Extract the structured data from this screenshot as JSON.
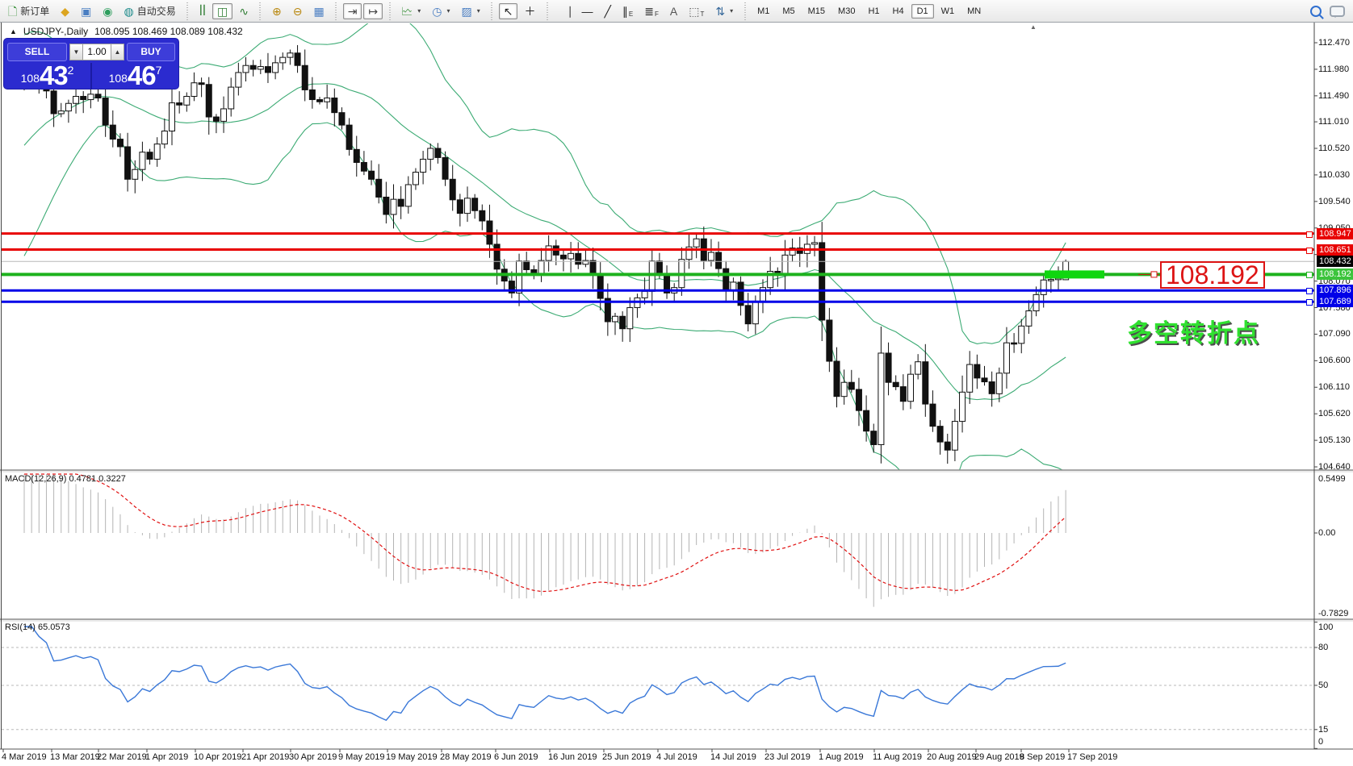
{
  "toolbar": {
    "groups": [
      {
        "items": [
          {
            "name": "new-order",
            "glyph": "🗋",
            "glyph_color": "#2e8b2e",
            "label": "新订单"
          },
          {
            "name": "metaeditor",
            "glyph": "◆",
            "glyph_color": "#dca520"
          },
          {
            "name": "terminal",
            "glyph": "▣",
            "glyph_color": "#4a7ec2"
          },
          {
            "name": "signals",
            "glyph": "◉",
            "glyph_color": "#2e9e5e"
          },
          {
            "name": "auto-trading",
            "glyph": "◍",
            "glyph_color": "#1c8a8a",
            "label": "自动交易"
          }
        ]
      },
      {
        "items": [
          {
            "name": "bar-chart",
            "glyph": "ꟾꟾ",
            "glyph_color": "#2e7d32"
          },
          {
            "name": "candlestick-chart",
            "glyph": "◫",
            "glyph_color": "#2e7d32",
            "pressed": true
          },
          {
            "name": "line-chart",
            "glyph": "∿",
            "glyph_color": "#2e7d32"
          }
        ]
      },
      {
        "items": [
          {
            "name": "zoom-in",
            "glyph": "⊕",
            "glyph_color": "#b8860b"
          },
          {
            "name": "zoom-out",
            "glyph": "⊖",
            "glyph_color": "#b8860b"
          },
          {
            "name": "tile-windows",
            "glyph": "▦",
            "glyph_color": "#4a7ec2"
          }
        ]
      },
      {
        "items": [
          {
            "name": "chart-shift",
            "glyph": "⇥",
            "glyph_color": "#444",
            "pressed": true
          },
          {
            "name": "auto-scroll",
            "glyph": "↦",
            "glyph_color": "#444",
            "pressed": true
          }
        ]
      },
      {
        "items": [
          {
            "name": "add-indicator",
            "glyph": "🗠",
            "glyph_color": "#2e8b2e",
            "caret": true
          },
          {
            "name": "period-menu",
            "glyph": "◷",
            "glyph_color": "#4a7ec2",
            "caret": true
          },
          {
            "name": "template-menu",
            "glyph": "▨",
            "glyph_color": "#4a7ec2",
            "caret": true
          }
        ]
      },
      {
        "items": [
          {
            "name": "cursor",
            "glyph": "↖",
            "glyph_color": "#222",
            "pressed": true
          },
          {
            "name": "crosshair",
            "glyph": "＋",
            "glyph_color": "#222"
          }
        ]
      },
      {
        "items": [
          {
            "name": "vertical-line",
            "glyph": "⎹",
            "glyph_color": "#222"
          },
          {
            "name": "horizontal-line",
            "glyph": "—",
            "glyph_color": "#222"
          },
          {
            "name": "trend-line",
            "glyph": "╱",
            "glyph_color": "#222"
          },
          {
            "name": "equidistant-channel",
            "glyph": "∥",
            "glyph_color": "#222",
            "sub": "E"
          },
          {
            "name": "fibonacci",
            "glyph": "≣",
            "glyph_color": "#222",
            "sub": "F"
          },
          {
            "name": "text",
            "glyph": "A",
            "glyph_color": "#555"
          },
          {
            "name": "text-label",
            "glyph": "⬚",
            "glyph_color": "#555",
            "sub": "T"
          },
          {
            "name": "arrow-tools",
            "glyph": "⇅",
            "glyph_color": "#336699",
            "caret": true
          }
        ]
      },
      {
        "items": [
          {
            "name": "tf-m1",
            "tf": true,
            "label": "M1"
          },
          {
            "name": "tf-m5",
            "tf": true,
            "label": "M5"
          },
          {
            "name": "tf-m15",
            "tf": true,
            "label": "M15"
          },
          {
            "name": "tf-m30",
            "tf": true,
            "label": "M30"
          },
          {
            "name": "tf-h1",
            "tf": true,
            "label": "H1"
          },
          {
            "name": "tf-h4",
            "tf": true,
            "label": "H4"
          },
          {
            "name": "tf-d1",
            "tf": true,
            "label": "D1",
            "pressed": true
          },
          {
            "name": "tf-w1",
            "tf": true,
            "label": "W1"
          },
          {
            "name": "tf-mn",
            "tf": true,
            "label": "MN"
          }
        ]
      }
    ]
  },
  "window": {
    "collapse_glyph": "▲",
    "title": "USDJPY-,Daily",
    "ohlc_text": "108.095 108.469 108.089 108.432",
    "shift_marker": "▲"
  },
  "trade_panel": {
    "sell_label": "SELL",
    "buy_label": "BUY",
    "volume": "1.00",
    "spin_down": "▼",
    "spin_up": "▲",
    "sell_prefix": "108",
    "sell_big": "43",
    "sell_sup": "2",
    "buy_prefix": "108",
    "buy_big": "46",
    "buy_sup": "7"
  },
  "chart_data": {
    "type": "candlestick",
    "symbol": "USDJPY-",
    "timeframe": "Daily",
    "last_candle_ohlc": {
      "open": 108.095,
      "high": 108.469,
      "low": 108.089,
      "close": 108.432
    },
    "prehistory_closes": [
      108.6,
      108.78,
      108.95,
      109.12,
      109.32,
      109.55,
      109.78,
      110.02,
      110.22,
      110.45,
      110.62,
      110.85,
      111.02,
      111.2,
      111.36,
      111.5,
      111.62,
      111.72,
      111.8,
      111.86
    ],
    "closes": [
      111.78,
      111.88,
      111.7,
      111.58,
      111.16,
      111.21,
      111.35,
      111.48,
      111.42,
      111.52,
      111.45,
      110.95,
      110.69,
      110.55,
      109.95,
      110.13,
      110.45,
      110.32,
      110.6,
      110.84,
      111.36,
      111.32,
      111.48,
      111.73,
      111.7,
      111.1,
      111.02,
      111.25,
      111.65,
      111.92,
      112.05,
      111.98,
      112.03,
      111.92,
      112.1,
      112.2,
      112.28,
      112.05,
      111.6,
      111.42,
      111.38,
      111.45,
      111.18,
      110.95,
      110.5,
      110.26,
      110.1,
      109.95,
      109.62,
      109.3,
      109.58,
      109.45,
      109.85,
      110.08,
      110.32,
      110.52,
      110.35,
      109.95,
      109.57,
      109.32,
      109.6,
      109.37,
      109.18,
      108.75,
      108.29,
      108.07,
      107.85,
      108.44,
      108.28,
      108.19,
      108.45,
      108.72,
      108.55,
      108.48,
      108.58,
      108.38,
      108.45,
      108.2,
      107.75,
      107.32,
      107.42,
      107.19,
      107.58,
      107.76,
      107.88,
      108.44,
      108.2,
      107.85,
      107.95,
      108.47,
      108.7,
      108.85,
      108.45,
      108.6,
      108.3,
      107.9,
      108.05,
      107.62,
      107.28,
      107.7,
      107.95,
      108.25,
      108.18,
      108.55,
      108.68,
      108.58,
      108.75,
      108.78,
      107.35,
      106.59,
      105.94,
      106.2,
      106.07,
      105.68,
      105.3,
      105.05,
      106.74,
      106.2,
      106.12,
      105.85,
      106.35,
      106.58,
      105.8,
      105.39,
      105.1,
      104.95,
      105.48,
      106.02,
      106.53,
      106.28,
      106.21,
      105.99,
      106.37,
      106.93,
      106.92,
      107.24,
      107.52,
      107.82,
      108.09,
      108.1,
      108.12,
      108.432
    ],
    "bollinger": {
      "period": 20,
      "deviation": 2,
      "color": "#3cab74"
    },
    "macd": {
      "label": "MACD(12,26,9)",
      "values_text": "0.4781 0.3227",
      "axis_labels": [
        "0.5499",
        "0.00",
        "-0.7829"
      ],
      "histogram_color": "#b4b4b4",
      "signal_color": "#e01010"
    },
    "rsi": {
      "label": "RSI(14)",
      "value_text": "65.0573",
      "axis_labels": [
        100,
        80,
        50,
        15,
        0
      ],
      "levels": [
        80,
        50,
        15
      ],
      "line_color": "#3a78d8"
    },
    "y_axis_ticks": [
      112.47,
      111.98,
      111.49,
      111.01,
      110.52,
      110.03,
      109.54,
      109.05,
      108.56,
      108.07,
      107.58,
      107.09,
      106.6,
      106.11,
      105.62,
      105.13,
      104.64
    ],
    "current_price_line": {
      "price": 108.432,
      "label": "108.432",
      "line_color": "#b8b8b8",
      "tag_bg": "#000000"
    },
    "hlines": [
      {
        "price": 108.947,
        "label": "108.947",
        "color": "#e80000",
        "tag_bg": "#e80000",
        "lw": 3
      },
      {
        "price": 108.651,
        "label": "108.651",
        "color": "#e80000",
        "tag_bg": "#e80000",
        "lw": 3
      },
      {
        "price": 108.192,
        "label": "108.192",
        "color": "#1db21d",
        "tag_bg": "#3cc43c",
        "lw": 4
      },
      {
        "price": 107.896,
        "label": "107.896",
        "color": "#0000e8",
        "tag_bg": "#0000e8",
        "lw": 3
      },
      {
        "price": 107.689,
        "label": "107.689",
        "color": "#0000e8",
        "tag_bg": "#0000e8",
        "lw": 3
      }
    ],
    "highlight_rect": {
      "price": 108.192,
      "color": "#0fd60f"
    },
    "annotations": {
      "price_callout": "108.192",
      "callout_color": "#dd1414",
      "cn_text": "多空转折点",
      "cn_color": "#30e030"
    },
    "x_axis": {
      "labels": [
        "4 Mar 2019",
        "13 Mar 2019",
        "22 Mar 2019",
        "1 Apr 2019",
        "10 Apr 2019",
        "21 Apr 2019",
        "30 Apr 2019",
        "9 May 2019",
        "19 May 2019",
        "28 May 2019",
        "6 Jun 2019",
        "16 Jun 2019",
        "25 Jun 2019",
        "4 Jul 2019",
        "14 Jul 2019",
        "23 Jul 2019",
        "1 Aug 2019",
        "11 Aug 2019",
        "20 Aug 2019",
        "29 Aug 2019",
        "8 Sep 2019",
        "17 Sep 2019"
      ],
      "xs": [
        2,
        62,
        120,
        180,
        240,
        299,
        358,
        419,
        478,
        545,
        612,
        679,
        746,
        813,
        880,
        947,
        1014,
        1081,
        1148,
        1207,
        1263,
        1322
      ]
    },
    "candle_colors": {
      "bull": "#ffffff",
      "bear": "#111111",
      "outline": "#111111"
    }
  }
}
